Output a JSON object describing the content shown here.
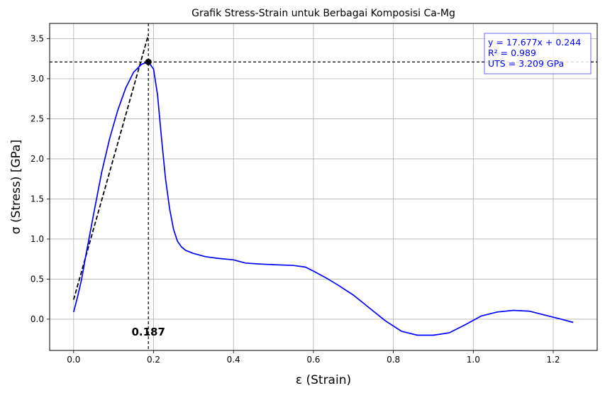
{
  "chart_data": {
    "type": "line",
    "title": "Grafik Stress-Strain untuk Berbagai Komposisi Ca-Mg",
    "xlabel": "ε (Strain)",
    "ylabel": "σ (Stress) [GPa]",
    "xlim": [
      -0.06,
      1.31
    ],
    "ylim": [
      -0.39,
      3.69
    ],
    "xticks": [
      0.0,
      0.2,
      0.4,
      0.6,
      0.8,
      1.0,
      1.2
    ],
    "xtick_labels": [
      "0.0",
      "0.2",
      "0.4",
      "0.6",
      "0.8",
      "1.0",
      "1.2"
    ],
    "yticks": [
      0.0,
      0.5,
      1.0,
      1.5,
      2.0,
      2.5,
      3.0,
      3.5
    ],
    "ytick_labels": [
      "0.0",
      "0.5",
      "1.0",
      "1.5",
      "2.0",
      "2.5",
      "3.0",
      "3.5"
    ],
    "grid": true,
    "series": [
      {
        "color": "#0000ff",
        "x": [
          0.0,
          0.01,
          0.02,
          0.03,
          0.05,
          0.07,
          0.09,
          0.11,
          0.13,
          0.15,
          0.17,
          0.187,
          0.2,
          0.21,
          0.22,
          0.23,
          0.24,
          0.25,
          0.26,
          0.27,
          0.28,
          0.3,
          0.33,
          0.36,
          0.4,
          0.43,
          0.46,
          0.5,
          0.55,
          0.58,
          0.6,
          0.63,
          0.66,
          0.7,
          0.74,
          0.78,
          0.82,
          0.86,
          0.9,
          0.94,
          0.98,
          1.02,
          1.06,
          1.1,
          1.14,
          1.18,
          1.22,
          1.25
        ],
        "y": [
          0.09,
          0.28,
          0.5,
          0.78,
          1.31,
          1.83,
          2.25,
          2.6,
          2.88,
          3.08,
          3.18,
          3.209,
          3.12,
          2.8,
          2.25,
          1.75,
          1.38,
          1.12,
          0.97,
          0.9,
          0.86,
          0.82,
          0.78,
          0.76,
          0.74,
          0.7,
          0.69,
          0.68,
          0.67,
          0.65,
          0.6,
          0.52,
          0.43,
          0.3,
          0.14,
          -0.02,
          -0.15,
          -0.2,
          -0.2,
          -0.17,
          -0.07,
          0.04,
          0.09,
          0.11,
          0.1,
          0.05,
          0.0,
          -0.04
        ]
      }
    ],
    "fit_line": {
      "slope": 17.677,
      "intercept": 0.244,
      "x_range": [
        0.0,
        0.187
      ],
      "color": "#000000",
      "style": "dashed"
    },
    "peak": {
      "x": 0.187,
      "y": 3.209,
      "label": "0.187"
    },
    "reference_lines": {
      "vertical_x": 0.187,
      "horizontal_y": 3.209,
      "style": "dashed",
      "color": "#000000"
    },
    "annotation": {
      "lines": [
        "y = 17.677x + 0.244",
        "R² = 0.989",
        "UTS = 3.209 GPa"
      ],
      "placement": "top-right",
      "color": "#0000ff"
    }
  }
}
